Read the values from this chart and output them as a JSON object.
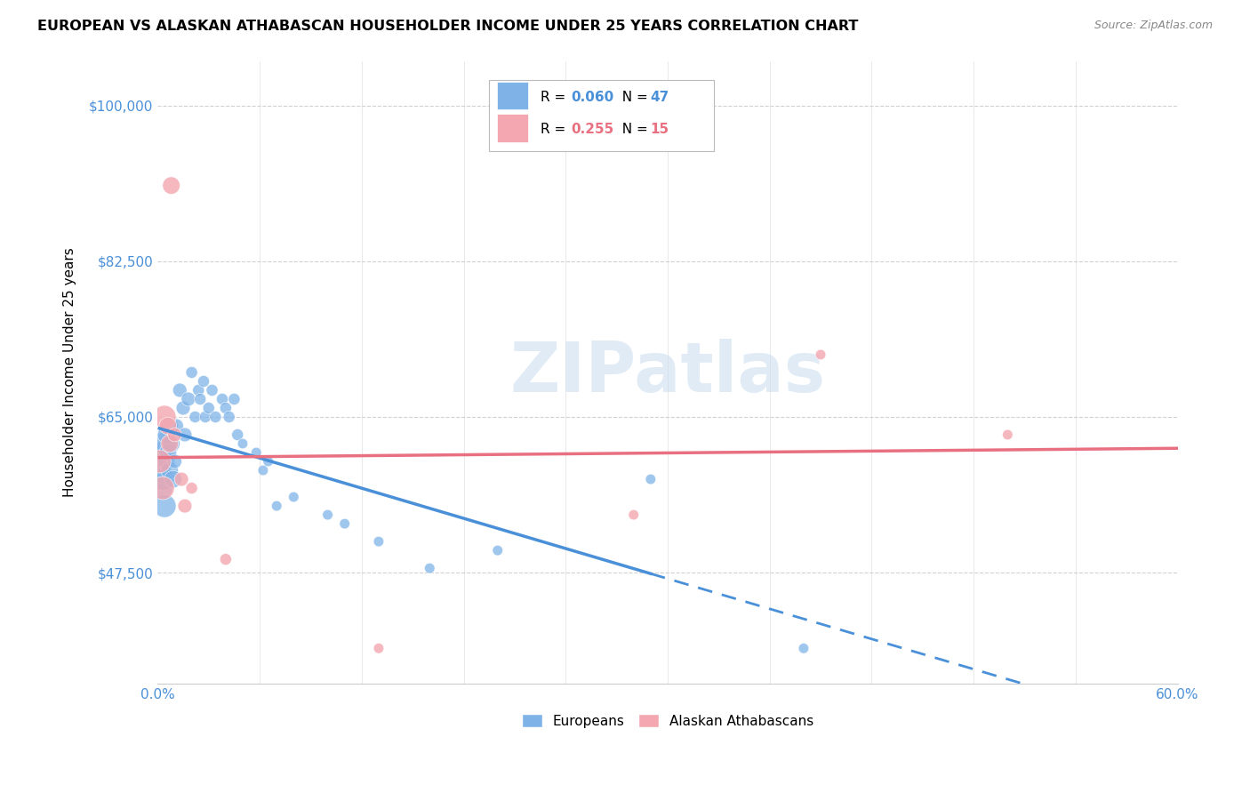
{
  "title": "EUROPEAN VS ALASKAN ATHABASCAN HOUSEHOLDER INCOME UNDER 25 YEARS CORRELATION CHART",
  "source": "Source: ZipAtlas.com",
  "ylabel": "Householder Income Under 25 years",
  "xlim": [
    0.0,
    0.6
  ],
  "ylim": [
    35000,
    105000
  ],
  "xtick_labels": [
    "0.0%",
    "60.0%"
  ],
  "ytick_labels": [
    "$47,500",
    "$65,000",
    "$82,500",
    "$100,000"
  ],
  "ytick_positions": [
    47500,
    65000,
    82500,
    100000
  ],
  "watermark": "ZIPatlas",
  "legend_european": "Europeans",
  "legend_athabascan": "Alaskan Athabascans",
  "r_european": 0.06,
  "n_european": 47,
  "r_athabascan": 0.255,
  "n_athabascan": 15,
  "european_color": "#7FB3E8",
  "athabascan_color": "#F4A7B0",
  "trend_european_color": "#4A90D9",
  "trend_athabascan_color": "#E87080",
  "european_x": [
    0.001,
    0.002,
    0.002,
    0.003,
    0.003,
    0.004,
    0.004,
    0.005,
    0.005,
    0.006,
    0.007,
    0.007,
    0.008,
    0.009,
    0.01,
    0.011,
    0.013,
    0.015,
    0.016,
    0.018,
    0.02,
    0.022,
    0.024,
    0.025,
    0.027,
    0.028,
    0.03,
    0.032,
    0.034,
    0.038,
    0.04,
    0.042,
    0.045,
    0.047,
    0.05,
    0.058,
    0.062,
    0.065,
    0.07,
    0.08,
    0.1,
    0.11,
    0.13,
    0.16,
    0.2,
    0.29,
    0.38
  ],
  "european_y": [
    59000,
    60000,
    57000,
    61000,
    58000,
    62000,
    55000,
    63000,
    60000,
    61000,
    59000,
    64000,
    62000,
    58000,
    60000,
    64000,
    68000,
    66000,
    63000,
    67000,
    70000,
    65000,
    68000,
    67000,
    69000,
    65000,
    66000,
    68000,
    65000,
    67000,
    66000,
    65000,
    67000,
    63000,
    62000,
    61000,
    59000,
    60000,
    55000,
    56000,
    54000,
    53000,
    51000,
    48000,
    50000,
    58000,
    39000
  ],
  "athabascan_x": [
    0.001,
    0.003,
    0.004,
    0.006,
    0.007,
    0.008,
    0.01,
    0.014,
    0.016,
    0.02,
    0.04,
    0.13,
    0.28,
    0.39,
    0.5
  ],
  "athabascan_y": [
    60000,
    57000,
    65000,
    64000,
    62000,
    91000,
    63000,
    58000,
    55000,
    57000,
    49000,
    39000,
    54000,
    72000,
    63000
  ],
  "background_color": "#FFFFFF",
  "grid_color": "#CCCCCC",
  "tick_color": "#4A90D9"
}
